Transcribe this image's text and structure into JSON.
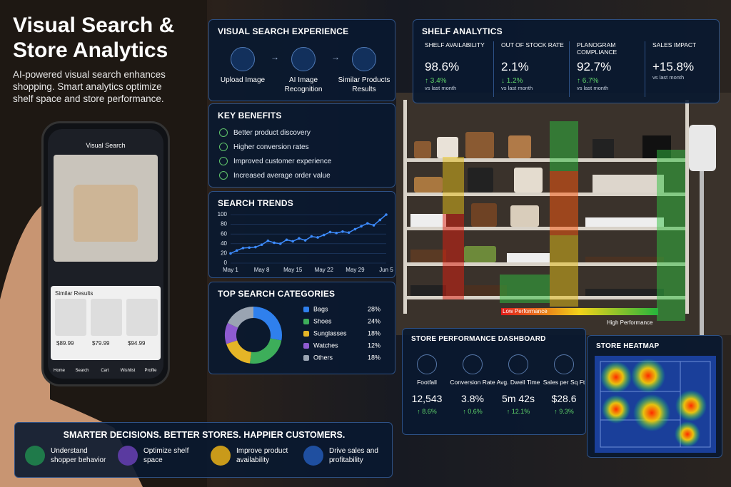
{
  "header": {
    "title_lines": [
      "Visual Search &",
      "Store Analytics"
    ],
    "subtitle": "AI-powered visual search enhances shopping. Smart analytics optimize shelf space and store performance."
  },
  "phone": {
    "title": "Visual Search",
    "similar_title": "Similar Results",
    "prices": [
      "$89.99",
      "$79.99",
      "$94.99"
    ],
    "nav": [
      "Home",
      "Search",
      "Cart",
      "Wishlist",
      "Profile"
    ]
  },
  "visual_search": {
    "title": "VISUAL SEARCH EXPERIENCE",
    "steps": [
      "Upload Image",
      "AI Image Recognition",
      "Similar Products Results"
    ]
  },
  "key_benefits": {
    "title": "KEY BENEFITS",
    "items": [
      "Better product discovery",
      "Higher conversion rates",
      "Improved customer experience",
      "Increased average order value"
    ]
  },
  "chart_data": [
    {
      "type": "line",
      "title": "SEARCH TRENDS",
      "categories": [
        "May 1",
        null,
        null,
        null,
        null,
        "May 8",
        null,
        null,
        null,
        null,
        "May 15",
        null,
        null,
        null,
        null,
        "May 22",
        null,
        null,
        null,
        null,
        "May 29",
        null,
        null,
        null,
        null,
        "Jun 5"
      ],
      "values": [
        20,
        26,
        31,
        32,
        33,
        38,
        46,
        42,
        40,
        48,
        45,
        51,
        47,
        55,
        53,
        58,
        64,
        62,
        65,
        63,
        70,
        76,
        82,
        78,
        89,
        100
      ],
      "ylim": [
        0,
        100
      ],
      "yticks": [
        0,
        20,
        40,
        60,
        80,
        100
      ],
      "color": "#3d8bfd",
      "grid": true
    },
    {
      "type": "donut",
      "title": "TOP SEARCH CATEGORIES",
      "categories": [
        "Bags",
        "Shoes",
        "Sunglasses",
        "Watches",
        "Others"
      ],
      "values": [
        28,
        24,
        18,
        12,
        18
      ],
      "value_labels": [
        "28%",
        "24%",
        "18%",
        "12%",
        "18%"
      ],
      "colors": [
        "#2f80ed",
        "#3dae5a",
        "#e5b527",
        "#8e5bd0",
        "#9aa4b2"
      ]
    }
  ],
  "shelf_analytics": {
    "title": "SHELF ANALYTICS",
    "metrics": [
      {
        "label": "SHELF AVAILABILITY",
        "value": "98.6%",
        "change": "↑ 3.4%",
        "note": "vs last month"
      },
      {
        "label": "OUT OF STOCK RATE",
        "value": "2.1%",
        "change": "↓ 1.2%",
        "note": "vs last month"
      },
      {
        "label": "PLANOGRAM COMPLIANCE",
        "value": "92.7%",
        "change": "↑ 6.7%",
        "note": "vs last month"
      },
      {
        "label": "SALES IMPACT",
        "value": "+15.8%",
        "note": "vs last month"
      }
    ],
    "legend": [
      "Low Performance",
      "High Performance"
    ]
  },
  "store_performance": {
    "title": "STORE PERFORMANCE DASHBOARD",
    "metrics": [
      {
        "label": "Footfall",
        "value": "12,543",
        "change": "↑ 8.6%"
      },
      {
        "label": "Conversion Rate",
        "value": "3.8%",
        "change": "↑ 0.6%"
      },
      {
        "label": "Avg. Dwell Time",
        "value": "5m 42s",
        "change": "↑ 12.1%"
      },
      {
        "label": "Sales per Sq Ft",
        "value": "$28.6",
        "change": "↑ 9.3%"
      }
    ]
  },
  "store_heatmap": {
    "title": "STORE HEATMAP"
  },
  "banner": {
    "title": "SMARTER DECISIONS. BETTER STORES. HAPPIER CUSTOMERS.",
    "items": [
      "Understand shopper behavior",
      "Optimize shelf space",
      "Improve product availability",
      "Drive sales and profitability"
    ]
  }
}
